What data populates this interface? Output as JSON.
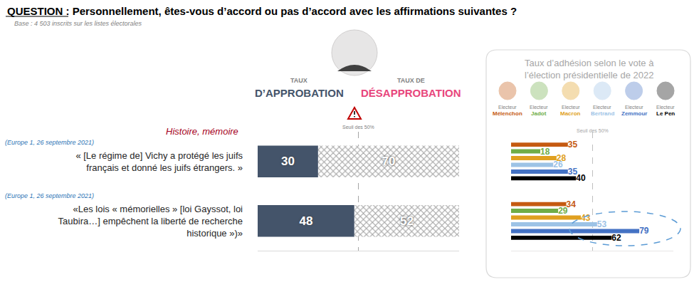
{
  "chart_data": [
    {
      "type": "bar",
      "orientation": "horizontal",
      "stacked": true,
      "data_labels": true,
      "tick_labels": "y",
      "grid": true,
      "title": "QUESTION : Personnellement, êtes-vous d’accord ou pas d’accord avec les affirmations suivantes ?",
      "subtitle": "Base : 4 503 inscrits sur les listes électorales",
      "annotations": [
        {
          "text": "Seuil des 50%"
        },
        {
          "text": "Histoire, mémoire"
        },
        {
          "text": "(Europe 1, 26 septembre 2021)"
        },
        {
          "text": "(Europe 1, 26 septembre 2021)"
        }
      ],
      "categories": [
        "« [Le régime de] Vichy a protégé les juifs français et donné les juifs étrangers. »",
        "«Les lois « mémorielles » [loi Gayssot, loi Taubira…] empêchent la liberté de recherche historique »)»"
      ],
      "series": [
        {
          "name": "TAUX D’APPROBATION",
          "color": "#44546a",
          "values": [
            30,
            48
          ]
        },
        {
          "name": "TAUX DE DÉSAPPROBATION",
          "color": "#a6a6a6",
          "marker": "hatched",
          "values": [
            70,
            52
          ]
        }
      ],
      "xlim": [
        0,
        100
      ],
      "xticks": [
        50
      ]
    },
    {
      "type": "bar",
      "orientation": "horizontal",
      "data_labels": true,
      "tick_labels": false,
      "grid": true,
      "title": "Taux d’adhésion selon le vote à l’élection présidentielle de 2022",
      "annotations": [
        {
          "text": "Seuil des 50%"
        }
      ],
      "categories": [
        null,
        null
      ],
      "series": [
        {
          "name": "Electeur Mélenchon",
          "color": "#c55a11",
          "values": [
            35,
            34
          ]
        },
        {
          "name": "Electeur Jadot",
          "color": "#70ad47",
          "values": [
            18,
            29
          ]
        },
        {
          "name": "Electeur Macron",
          "color": "#e0a020",
          "values": [
            28,
            43
          ]
        },
        {
          "name": "Electeur Bertrand",
          "color": "#9dc3e6",
          "values": [
            26,
            53
          ]
        },
        {
          "name": "Electeur Zemmour",
          "color": "#4472c4",
          "values": [
            35,
            79
          ]
        },
        {
          "name": "Electeur Le Pen",
          "color": "#000000",
          "values": [
            40,
            62
          ]
        }
      ],
      "xlim": [
        0,
        100
      ],
      "xticks": [
        50
      ]
    }
  ]
}
